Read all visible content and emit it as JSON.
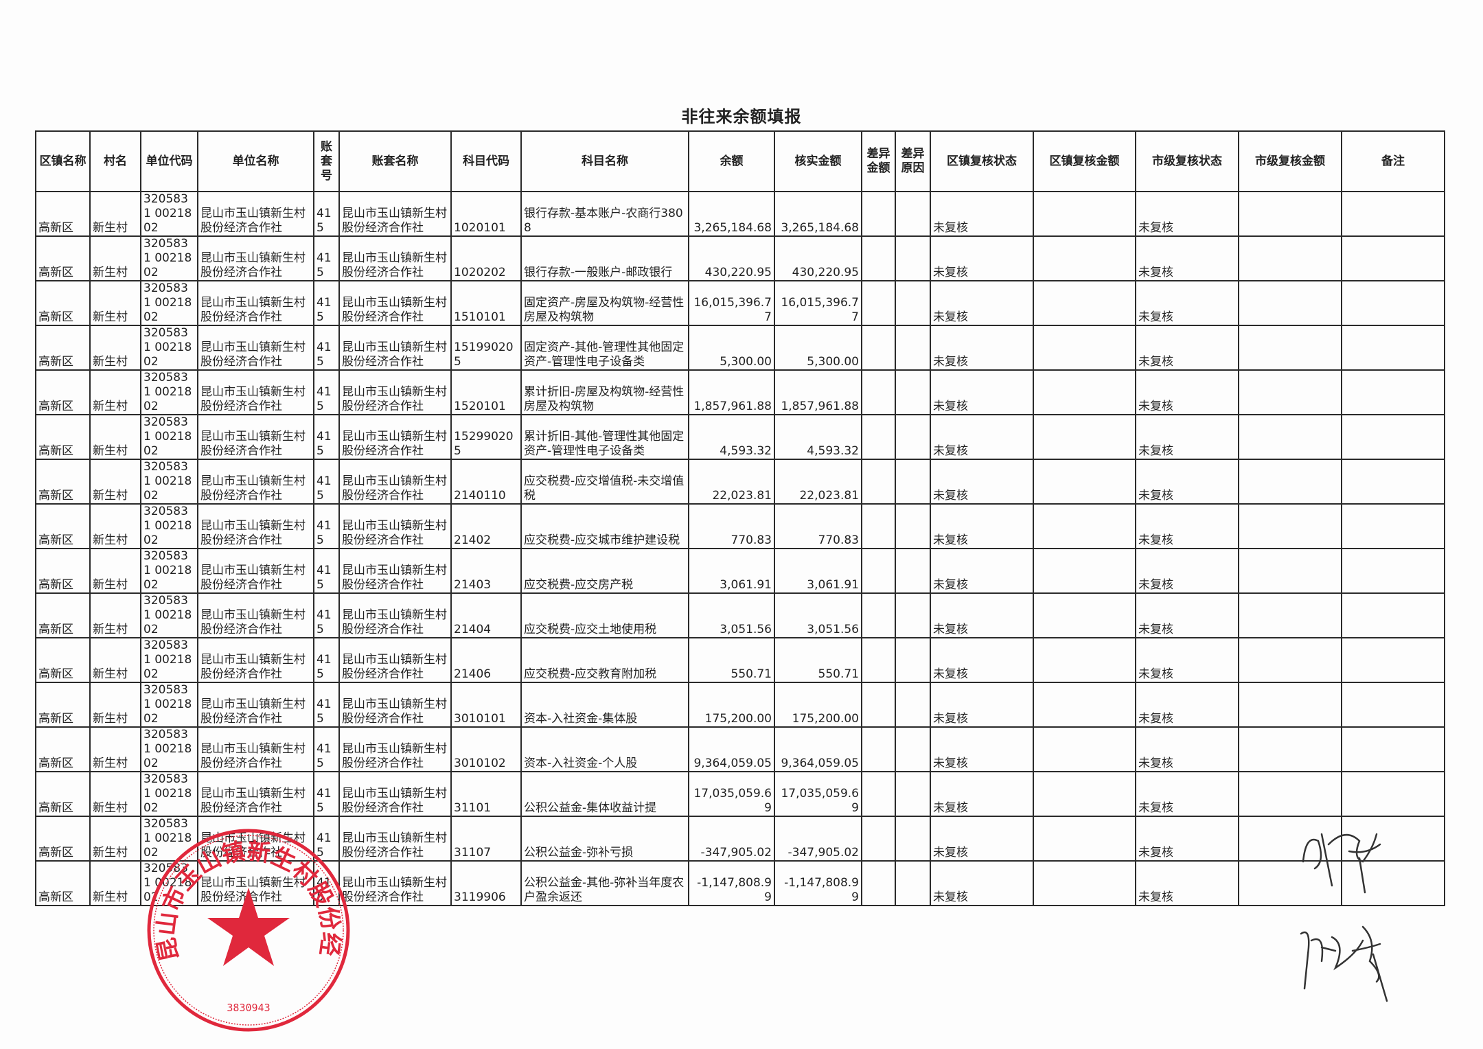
{
  "title": "非往来余额填报",
  "columns": [
    "区镇名称",
    "村名",
    "单位代码",
    "单位名称",
    "账套号",
    "账套名称",
    "科目代码",
    "科目名称",
    "余额",
    "核实金额",
    "差异金额",
    "差异原因",
    "区镇复核状态",
    "区镇复核金额",
    "市级复核状态",
    "市级复核金额",
    "备注"
  ],
  "rows": [
    [
      "高新区",
      "新生村",
      "3205831 0021802",
      "昆山市玉山镇新生村股份经济合作社",
      "415",
      "昆山市玉山镇新生村股份经济合作社",
      "1020101",
      "银行存款-基本账户-农商行3808",
      "3,265,184.68",
      "3,265,184.68",
      "",
      "",
      "未复核",
      "",
      "未复核",
      "",
      ""
    ],
    [
      "高新区",
      "新生村",
      "3205831 0021802",
      "昆山市玉山镇新生村股份经济合作社",
      "415",
      "昆山市玉山镇新生村股份经济合作社",
      "1020202",
      "银行存款-一般账户-邮政银行",
      "430,220.95",
      "430,220.95",
      "",
      "",
      "未复核",
      "",
      "未复核",
      "",
      ""
    ],
    [
      "高新区",
      "新生村",
      "3205831 0021802",
      "昆山市玉山镇新生村股份经济合作社",
      "415",
      "昆山市玉山镇新生村股份经济合作社",
      "1510101",
      "固定资产-房屋及构筑物-经营性房屋及构筑物",
      "16,015,396.77",
      "16,015,396.77",
      "",
      "",
      "未复核",
      "",
      "未复核",
      "",
      ""
    ],
    [
      "高新区",
      "新生村",
      "3205831 0021802",
      "昆山市玉山镇新生村股份经济合作社",
      "415",
      "昆山市玉山镇新生村股份经济合作社",
      "151990205",
      "固定资产-其他-管理性其他固定资产-管理性电子设备类",
      "5,300.00",
      "5,300.00",
      "",
      "",
      "未复核",
      "",
      "未复核",
      "",
      ""
    ],
    [
      "高新区",
      "新生村",
      "3205831 0021802",
      "昆山市玉山镇新生村股份经济合作社",
      "415",
      "昆山市玉山镇新生村股份经济合作社",
      "1520101",
      "累计折旧-房屋及构筑物-经营性房屋及构筑物",
      "1,857,961.88",
      "1,857,961.88",
      "",
      "",
      "未复核",
      "",
      "未复核",
      "",
      ""
    ],
    [
      "高新区",
      "新生村",
      "3205831 0021802",
      "昆山市玉山镇新生村股份经济合作社",
      "415",
      "昆山市玉山镇新生村股份经济合作社",
      "152990205",
      "累计折旧-其他-管理性其他固定资产-管理性电子设备类",
      "4,593.32",
      "4,593.32",
      "",
      "",
      "未复核",
      "",
      "未复核",
      "",
      ""
    ],
    [
      "高新区",
      "新生村",
      "3205831 0021802",
      "昆山市玉山镇新生村股份经济合作社",
      "415",
      "昆山市玉山镇新生村股份经济合作社",
      "2140110",
      "应交税费-应交增值税-未交增值税",
      "22,023.81",
      "22,023.81",
      "",
      "",
      "未复核",
      "",
      "未复核",
      "",
      ""
    ],
    [
      "高新区",
      "新生村",
      "3205831 0021802",
      "昆山市玉山镇新生村股份经济合作社",
      "415",
      "昆山市玉山镇新生村股份经济合作社",
      "21402",
      "应交税费-应交城市维护建设税",
      "770.83",
      "770.83",
      "",
      "",
      "未复核",
      "",
      "未复核",
      "",
      ""
    ],
    [
      "高新区",
      "新生村",
      "3205831 0021802",
      "昆山市玉山镇新生村股份经济合作社",
      "415",
      "昆山市玉山镇新生村股份经济合作社",
      "21403",
      "应交税费-应交房产税",
      "3,061.91",
      "3,061.91",
      "",
      "",
      "未复核",
      "",
      "未复核",
      "",
      ""
    ],
    [
      "高新区",
      "新生村",
      "3205831 0021802",
      "昆山市玉山镇新生村股份经济合作社",
      "415",
      "昆山市玉山镇新生村股份经济合作社",
      "21404",
      "应交税费-应交土地使用税",
      "3,051.56",
      "3,051.56",
      "",
      "",
      "未复核",
      "",
      "未复核",
      "",
      ""
    ],
    [
      "高新区",
      "新生村",
      "3205831 0021802",
      "昆山市玉山镇新生村股份经济合作社",
      "415",
      "昆山市玉山镇新生村股份经济合作社",
      "21406",
      "应交税费-应交教育附加税",
      "550.71",
      "550.71",
      "",
      "",
      "未复核",
      "",
      "未复核",
      "",
      ""
    ],
    [
      "高新区",
      "新生村",
      "3205831 0021802",
      "昆山市玉山镇新生村股份经济合作社",
      "415",
      "昆山市玉山镇新生村股份经济合作社",
      "3010101",
      "资本-入社资金-集体股",
      "175,200.00",
      "175,200.00",
      "",
      "",
      "未复核",
      "",
      "未复核",
      "",
      ""
    ],
    [
      "高新区",
      "新生村",
      "3205831 0021802",
      "昆山市玉山镇新生村股份经济合作社",
      "415",
      "昆山市玉山镇新生村股份经济合作社",
      "3010102",
      "资本-入社资金-个人股",
      "9,364,059.05",
      "9,364,059.05",
      "",
      "",
      "未复核",
      "",
      "未复核",
      "",
      ""
    ],
    [
      "高新区",
      "新生村",
      "3205831 0021802",
      "昆山市玉山镇新生村股份经济合作社",
      "415",
      "昆山市玉山镇新生村股份经济合作社",
      "31101",
      "公积公益金-集体收益计提",
      "17,035,059.69",
      "17,035,059.69",
      "",
      "",
      "未复核",
      "",
      "未复核",
      "",
      ""
    ],
    [
      "高新区",
      "新生村",
      "3205831 0021802",
      "昆山市玉山镇新生村股份经济合作社",
      "415",
      "昆山市玉山镇新生村股份经济合作社",
      "31107",
      "公积公益金-弥补亏损",
      "-347,905.02",
      "-347,905.02",
      "",
      "",
      "未复核",
      "",
      "未复核",
      "",
      ""
    ],
    [
      "高新区",
      "新生村",
      "3205831 0021802",
      "昆山市玉山镇新生村股份经济合作社",
      "415",
      "昆山市玉山镇新生村股份经济合作社",
      "3119906",
      "公积公益金-其他-弥补当年度农户盈余返还",
      "-1,147,808.99",
      "-1,147,808.99",
      "",
      "",
      "未复核",
      "",
      "未复核",
      "",
      ""
    ]
  ],
  "stamp": {
    "text": "昆山市玉山镇新生村股份经济合作社",
    "number": "3830943",
    "color": "#e0283c"
  },
  "colors": {
    "border": "#2a2a2a",
    "text": "#222222",
    "stamp": "#e0283c"
  }
}
